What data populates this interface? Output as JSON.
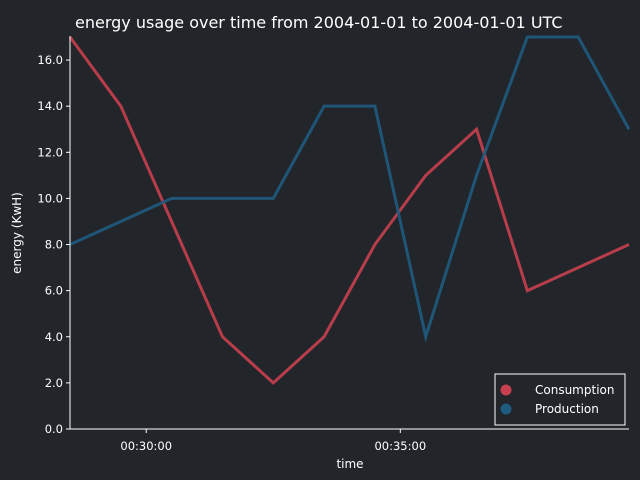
{
  "chart_data": {
    "type": "line",
    "title": "energy usage over time from 2004-01-01 to 2004-01-01 UTC",
    "xlabel": "time",
    "ylabel": "energy (KwH)",
    "x": [
      "00:28:30",
      "00:29:30",
      "00:30:30",
      "00:31:30",
      "00:32:30",
      "00:33:30",
      "00:34:30",
      "00:35:30",
      "00:36:30",
      "00:37:30",
      "00:38:30",
      "00:39:30"
    ],
    "xlim": [
      "00:28:30",
      "00:39:30"
    ],
    "ylim": [
      0,
      17
    ],
    "xticks": [
      {
        "time": "00:30:00",
        "label": "00:30:00"
      },
      {
        "time": "00:35:00",
        "label": "00:35:00"
      }
    ],
    "yticks": [
      0,
      2,
      4,
      6,
      8,
      10,
      12,
      14,
      16
    ],
    "ytick_labels": [
      "0.0",
      "2.0",
      "4.0",
      "6.0",
      "8.0",
      "10.0",
      "12.0",
      "14.0",
      "16.0"
    ],
    "series": [
      {
        "name": "Consumption",
        "color": "#c8404f",
        "values": [
          17,
          14,
          9,
          4,
          2,
          4,
          8,
          11,
          13,
          6,
          7,
          8
        ]
      },
      {
        "name": "Production",
        "color": "#1f5b7e",
        "values": [
          8,
          9,
          10,
          10,
          10,
          14,
          14,
          4,
          11,
          17,
          17,
          13
        ]
      }
    ],
    "grid": false,
    "legend_position": "bottom-right"
  }
}
